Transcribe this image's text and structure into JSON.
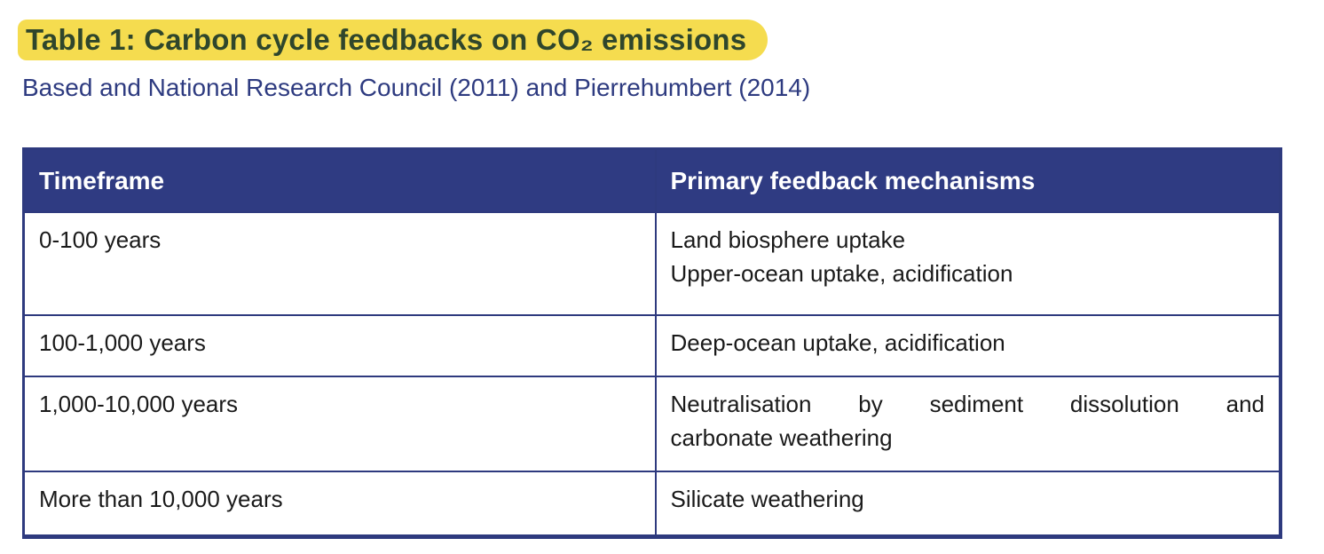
{
  "document": {
    "title": "Table 1: Carbon cycle feedbacks on CO₂ emissions",
    "source_line": "Based and National Research Council (2011) and Pierrehumbert (2014)"
  },
  "colors": {
    "title_highlight": "#f5dc4f",
    "title_text": "#2f462c",
    "source_text": "#2e3b80",
    "table_header_bg": "#2f3b82",
    "table_border": "#2e3a7e",
    "header_text": "#ffffff",
    "cell_text": "#1a1a1a"
  },
  "table": {
    "headers": [
      "Timeframe",
      "Primary feedback mechanisms"
    ],
    "rows": [
      {
        "timeframe": "0-100 years",
        "mechanism_lines": [
          "Land biosphere uptake",
          "Upper-ocean uptake, acidification"
        ]
      },
      {
        "timeframe": "100-1,000 years",
        "mechanism_lines": [
          "Deep-ocean uptake, acidification"
        ]
      },
      {
        "timeframe": "1,000-10,000 years",
        "mechanism_lines": [
          "Neutralisation by sediment dissolution and",
          "carbonate weathering"
        ]
      },
      {
        "timeframe": "More than 10,000 years",
        "mechanism_lines": [
          "Silicate weathering"
        ]
      }
    ]
  }
}
